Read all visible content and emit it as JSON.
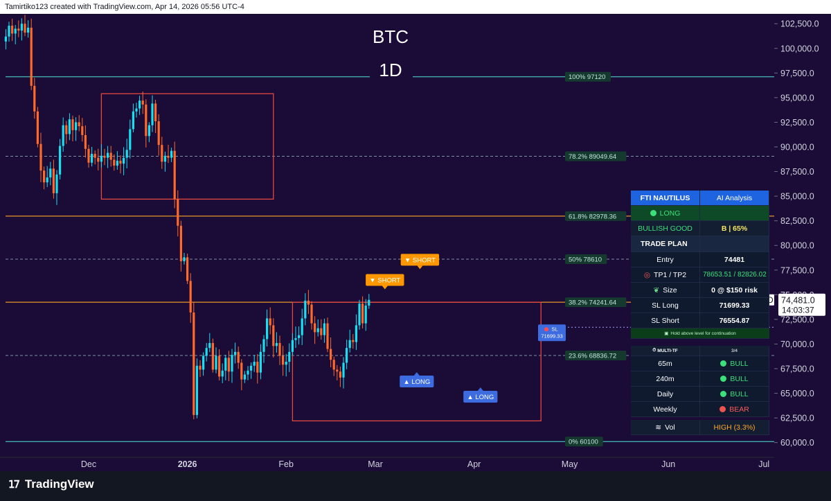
{
  "header": {
    "attribution": "Tamirtiko123 created with TradingView.com, Apr 14, 2026 05:56 UTC-4"
  },
  "brand": {
    "name": "TradingView"
  },
  "chart_data": {
    "type": "candlestick",
    "title": "BTC",
    "subtitle": "1D",
    "ylim": [
      58500,
      103500
    ],
    "yticks": [
      "102,500.0",
      "100,000.0",
      "97,500.0",
      "95,000.0",
      "92,500.0",
      "90,000.0",
      "87,500.0",
      "85,000.0",
      "82,500.0",
      "80,000.0",
      "77,500.0",
      "75,000.0",
      "72,500.0",
      "70,000.0",
      "67,500.0",
      "65,000.0",
      "62,500.0",
      "60,000.0"
    ],
    "ytick_values": [
      102500,
      100000,
      97500,
      95000,
      92500,
      90000,
      87500,
      85000,
      82500,
      80000,
      77500,
      75000,
      72500,
      70000,
      67500,
      65000,
      62500,
      60000
    ],
    "xticks": [
      {
        "label": "Dec",
        "index": 10
      },
      {
        "label": "2026",
        "index": 41
      },
      {
        "label": "Feb",
        "index": 72
      },
      {
        "label": "Mar",
        "index": 100
      },
      {
        "label": "Apr",
        "index": 131
      },
      {
        "label": "May",
        "index": 161
      },
      {
        "label": "Jun",
        "index": 192
      },
      {
        "label": "Jul",
        "index": 222
      }
    ],
    "x_index_range": [
      -18,
      224
    ],
    "closes": [
      101200,
      102300,
      101500,
      102000,
      101800,
      102500,
      101600,
      102100,
      96200,
      93600,
      90300,
      87600,
      86400,
      86900,
      87800,
      85300,
      87200,
      90100,
      92200,
      91300,
      92800,
      91700,
      92500,
      92100,
      91200,
      89800,
      88400,
      89300,
      88900,
      88500,
      89100,
      88900,
      89400,
      88700,
      88100,
      88600,
      88300,
      88900,
      89700,
      91800,
      93600,
      93900,
      94700,
      94300,
      91100,
      92200,
      94400,
      92600,
      90200,
      88500,
      89100,
      88900,
      89600,
      84700,
      82000,
      78400,
      78800,
      76400,
      73200,
      62800,
      67800,
      67400,
      68800,
      69600,
      70100,
      67400,
      68800,
      66700,
      67300,
      68600,
      67200,
      68900,
      69200,
      68100,
      66400,
      66900,
      67300,
      67800,
      68200,
      67100,
      69200,
      70500,
      72600,
      71900,
      69800,
      70100,
      68800,
      67900,
      68200,
      69200,
      70400,
      70600,
      70900,
      72600,
      74400,
      74000,
      72100,
      71200,
      71600,
      70900,
      72100,
      69500,
      68400,
      67400,
      67200,
      66600,
      68100,
      69600,
      70400,
      70200,
      71900,
      74100,
      72100,
      73900,
      74481
    ],
    "levels": [
      {
        "label": "100% 97120",
        "price": 97120,
        "color": "#4dd0c4",
        "style": "solid"
      },
      {
        "label": "78.2% 89049.64",
        "price": 89049.64,
        "color": "#8aa0b0",
        "style": "dashed"
      },
      {
        "label": "61.8% 82978.36",
        "price": 82978.36,
        "color": "#ffa726",
        "style": "solid"
      },
      {
        "label": "50% 78610",
        "price": 78610,
        "color": "#8aa0b0",
        "style": "dashed"
      },
      {
        "label": "38.2% 74241.64",
        "price": 74241.64,
        "color": "#ffa726",
        "style": "solid"
      },
      {
        "label": "23.6% 68836.72",
        "price": 68836.72,
        "color": "#8aa0b0",
        "style": "dashed"
      },
      {
        "label": "0% 60100",
        "price": 60100,
        "color": "#4dd0c4",
        "style": "solid"
      }
    ],
    "range_boxes": [
      {
        "start_index": 14,
        "end_index": 68,
        "top": 95400,
        "bottom": 84700
      },
      {
        "start_index": 74,
        "end_index": 152,
        "top": 74241,
        "bottom": 62200
      }
    ],
    "signals": [
      {
        "text": "▼ SHORT",
        "index": 103,
        "price": 76500,
        "kind": "short"
      },
      {
        "text": "▼ SHORT",
        "index": 114,
        "price": 78550,
        "kind": "short"
      },
      {
        "text": "▲ LONG",
        "index": 113,
        "price": 66200,
        "kind": "long"
      },
      {
        "text": "▲ LONG",
        "index": 133,
        "price": 64650,
        "kind": "long"
      }
    ],
    "sl_label": {
      "title": "SL",
      "value": "71699.33",
      "price": 71699.33
    },
    "last_price": {
      "symbol": "BTCUSD",
      "price_text": "74,481.0",
      "countdown": "14:03:37",
      "price": 74481
    }
  },
  "panel": {
    "header_left": "FTI NAUTILUS",
    "header_right": "AI Analysis",
    "signal": "LONG",
    "bias": "BULLISH GOOD",
    "grade": "B | 65%",
    "plan_title": "TRADE PLAN",
    "entry_label": "Entry",
    "entry_value": "74481",
    "tp_label": "TP1 / TP2",
    "tp_value": "78653.51 / 82826.02",
    "size_label": "Size",
    "size_value": "0 @ $150 risk",
    "sl_long_label": "SL Long",
    "sl_long_value": "71699.33",
    "sl_short_label": "SL Short",
    "sl_short_value": "76554.87",
    "hint": "Hold above level for continuation",
    "mtf_label": "MULTI-TF",
    "mtf_count": "3/4",
    "timeframes": [
      {
        "tf": "65m",
        "state": "BULL",
        "color": "#26c281"
      },
      {
        "tf": "240m",
        "state": "BULL",
        "color": "#26c281"
      },
      {
        "tf": "Daily",
        "state": "BULL",
        "color": "#26c281"
      },
      {
        "tf": "Weekly",
        "state": "BEAR",
        "color": "#ef5350"
      }
    ],
    "vol_label": "Vol",
    "vol_value": "HIGH (3.3%)"
  },
  "colors": {
    "background": "#1a0b37",
    "bull": "#18e0f0",
    "bear": "#ff6a2a",
    "box": "#e5483f",
    "accent": "#1e63e0"
  }
}
